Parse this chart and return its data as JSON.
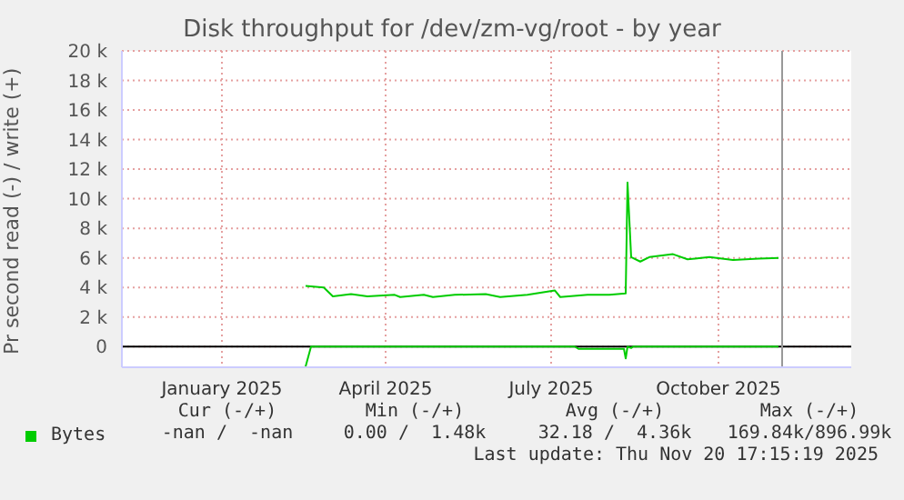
{
  "chart_data": {
    "type": "line",
    "title": "Disk throughput for /dev/zm-vg/root - by year",
    "ylabel": "Pr second read (-) / write (+)",
    "xlim": [
      "2024-11-22",
      "2025-12-28"
    ],
    "xticks": [
      {
        "value": "2025-01-16",
        "label": "January 2025"
      },
      {
        "value": "2025-04-16",
        "label": "April 2025"
      },
      {
        "value": "2025-07-16",
        "label": "July 2025"
      },
      {
        "value": "2025-10-16",
        "label": "October 2025"
      }
    ],
    "ylim": [
      -1400,
      20000
    ],
    "yticks": [
      0,
      {
        "value": 2000,
        "label": "2 k"
      },
      {
        "value": 4000,
        "label": "4 k"
      },
      {
        "value": 6000,
        "label": "6 k"
      },
      {
        "value": 8000,
        "label": "8 k"
      },
      {
        "value": 10000,
        "label": "10 k"
      },
      {
        "value": 12000,
        "label": "12 k"
      },
      {
        "value": 14000,
        "label": "14 k"
      },
      {
        "value": 16000,
        "label": "16 k"
      },
      {
        "value": 18000,
        "label": "18 k"
      },
      {
        "value": 20000,
        "label": "20 k"
      }
    ],
    "grid": true,
    "legend": "bottom",
    "marker": "none",
    "line_style": "solid",
    "series": [
      {
        "name": "Bytes",
        "color": "#00cc00",
        "x": [
          "2025-03-03",
          "2025-03-13",
          "2025-03-18",
          "2025-03-28",
          "2025-04-06",
          "2025-04-21",
          "2025-04-24",
          "2025-05-07",
          "2025-05-12",
          "2025-05-24",
          "2025-06-10",
          "2025-06-18",
          "2025-07-03",
          "2025-07-18",
          "2025-07-21",
          "2025-08-05",
          "2025-08-17",
          "2025-08-26",
          "2025-08-27",
          "2025-08-29",
          "2025-09-03",
          "2025-09-08",
          "2025-09-21",
          "2025-09-29",
          "2025-10-11",
          "2025-10-24",
          "2025-11-07",
          "2025-11-18"
        ],
        "values": [
          4100,
          4000,
          3400,
          3550,
          3400,
          3500,
          3350,
          3500,
          3350,
          3500,
          3550,
          3350,
          3500,
          3800,
          3350,
          3500,
          3500,
          3600,
          11100,
          6050,
          5750,
          6050,
          6250,
          5900,
          6050,
          5850,
          5950,
          6000
        ]
      },
      {
        "color": "#00cc00",
        "x": [
          "2025-03-03",
          "2025-03-06",
          "2025-07-29",
          "2025-07-31",
          "2025-08-15",
          "2025-08-25",
          "2025-08-26",
          "2025-08-27",
          "2025-08-29",
          "2025-08-30",
          "2025-11-18"
        ],
        "values": [
          -1350,
          0,
          0,
          -150,
          -150,
          -150,
          -800,
          0,
          -100,
          0,
          0
        ]
      }
    ],
    "ref_lines": [
      {
        "axis": "y",
        "value": 0,
        "color": "#000000"
      },
      {
        "axis": "x",
        "value": "2025-11-20",
        "color": "#999999"
      }
    ],
    "annotations": [
      "Cur (-/+)",
      "Min (-/+)",
      "Avg (-/+)",
      "Max (-/+)",
      "-nan /  -nan",
      "0.00 /  1.48k",
      "32.18 /  4.36k",
      "169.84k/896.99k",
      "Last update: Thu Nov 20 17:15:19 2025"
    ]
  }
}
